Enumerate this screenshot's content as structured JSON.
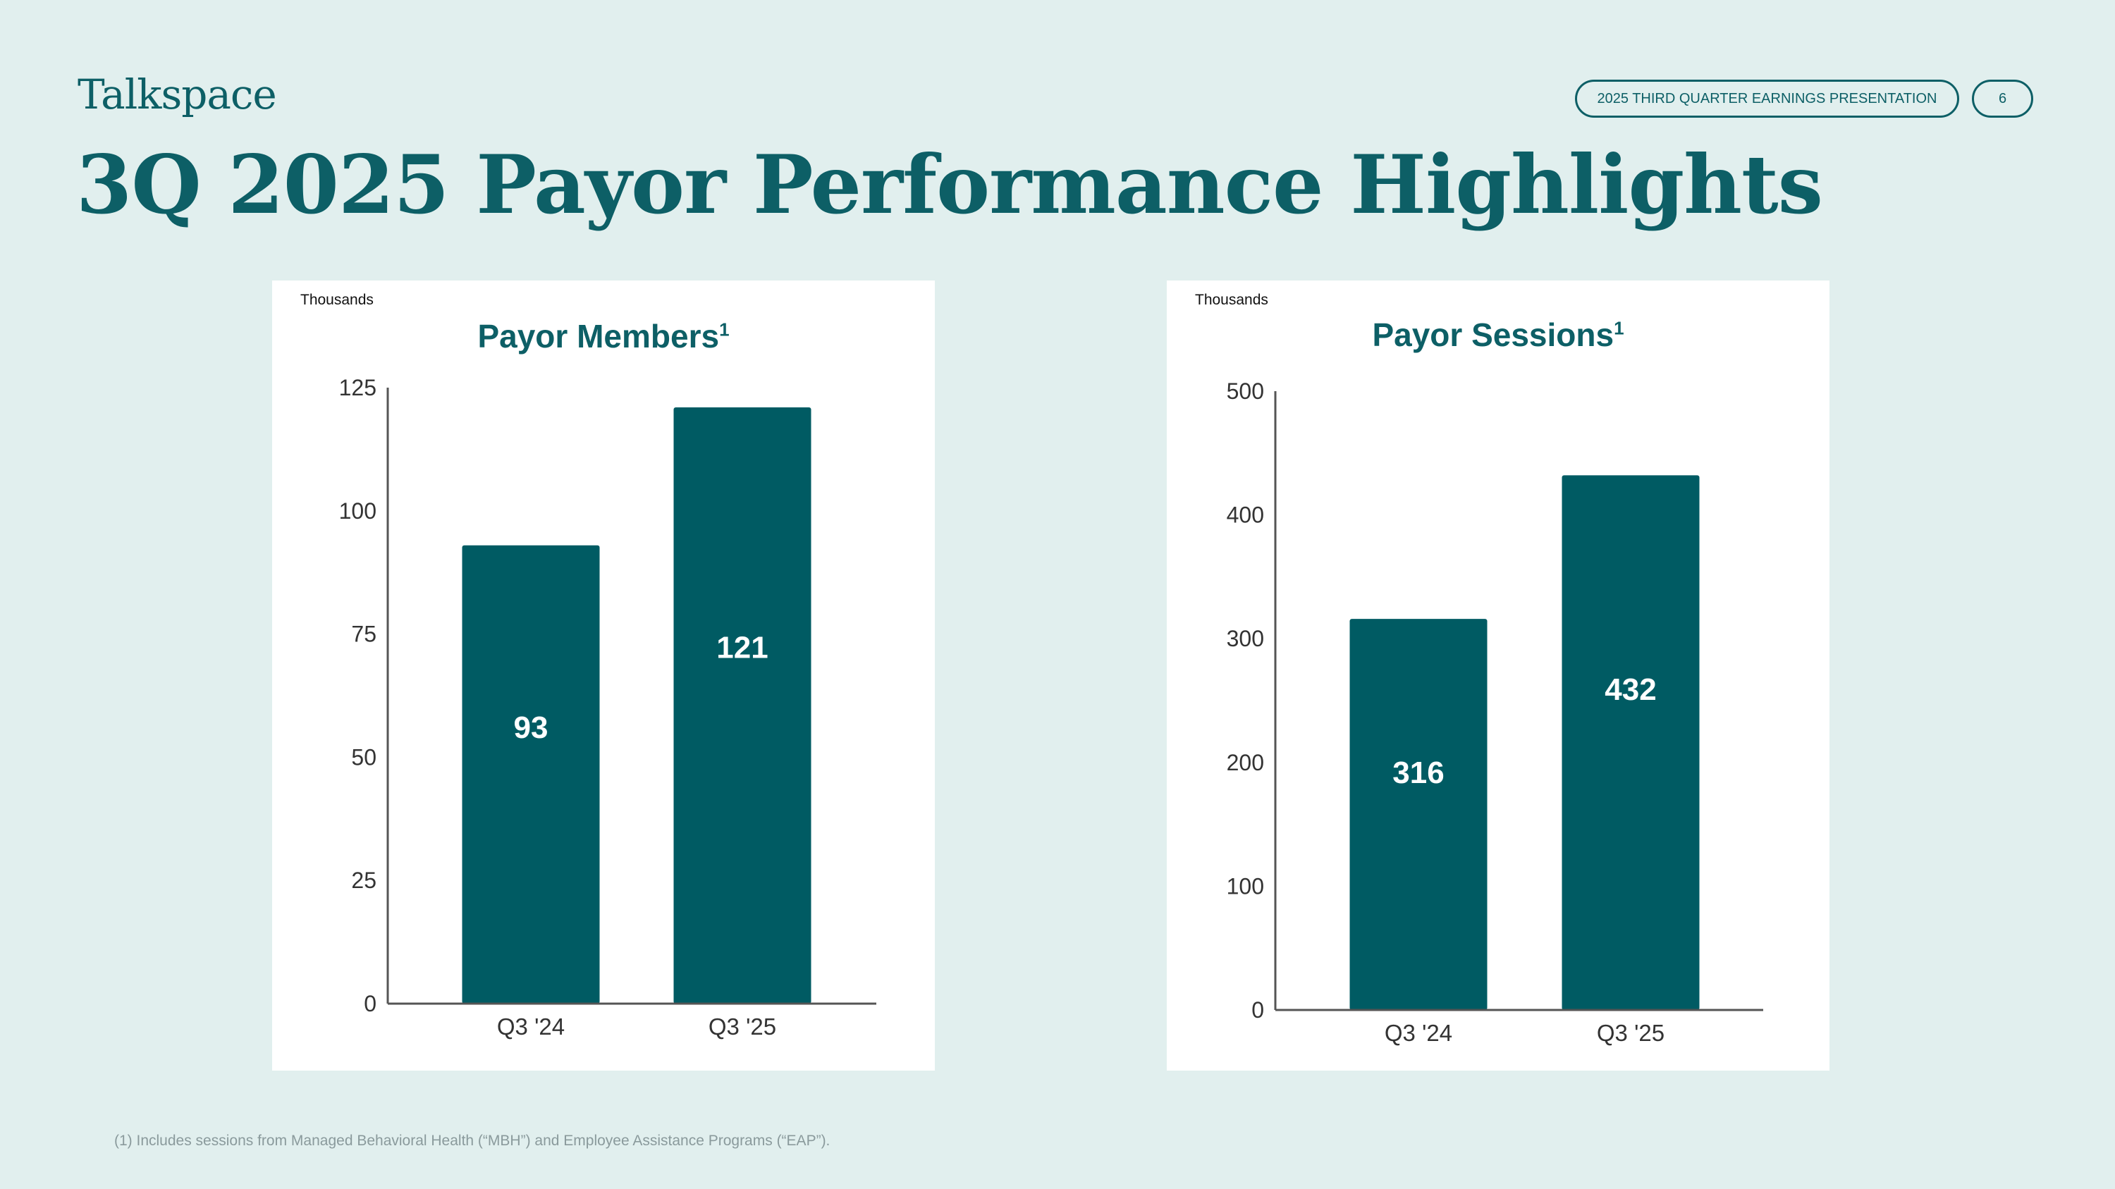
{
  "header": {
    "logo": "Talkspace",
    "presentation_label": "2025 THIRD QUARTER EARNINGS PRESENTATION",
    "page_number": "6",
    "title": "3Q 2025 Payor Performance Highlights"
  },
  "chart_data": [
    {
      "type": "bar",
      "units_label": "Thousands",
      "title": "Payor Members",
      "title_superscript": "1",
      "categories": [
        "Q3 '24",
        "Q3 '25"
      ],
      "values": [
        93,
        121
      ],
      "value_labels": [
        "93",
        "121"
      ],
      "ylim": [
        0,
        125
      ],
      "yticks": [
        "0",
        "25",
        "50",
        "75",
        "100",
        "125"
      ],
      "bar_color": "#005b63"
    },
    {
      "type": "bar",
      "units_label": "Thousands",
      "title": "Payor Sessions",
      "title_superscript": "1",
      "categories": [
        "Q3 '24",
        "Q3 '25"
      ],
      "values": [
        316,
        432
      ],
      "value_labels": [
        "316",
        "432"
      ],
      "ylim": [
        0,
        500
      ],
      "yticks": [
        "0",
        "100",
        "200",
        "300",
        "400",
        "500"
      ],
      "bar_color": "#005b63"
    }
  ],
  "footnote": "(1) Includes sessions from Managed Behavioral Health (“MBH”) and Employee Assistance Programs (“EAP”)."
}
